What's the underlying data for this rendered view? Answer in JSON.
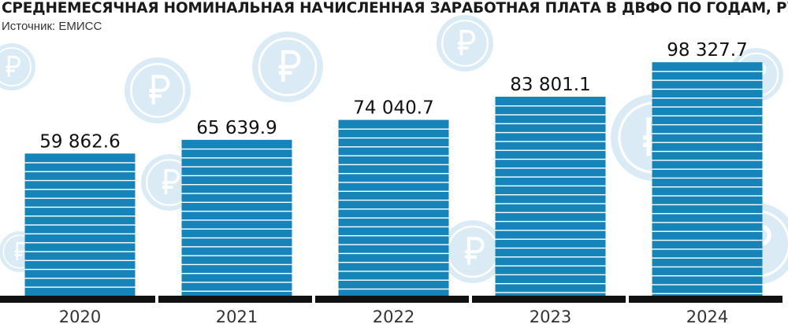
{
  "title": "СРЕДНЕМЕСЯЧНАЯ НОМИНАЛЬНАЯ НАЧИСЛЕННАЯ ЗАРАБОТНАЯ ПЛАТА В ДВФО ПО ГОДАМ, РУБ.",
  "source": "Источник: ЕМИСС",
  "colors": {
    "bar": "#1784b9",
    "bar_stripe": "#ffffff",
    "baseline": "#111111",
    "text": "#111111",
    "coin": "#cfe5f4"
  },
  "background_icon": "ruble-coin-icon",
  "chart_data": {
    "type": "bar",
    "title": "СРЕДНЕМЕСЯЧНАЯ НОМИНАЛЬНАЯ НАЧИСЛЕННАЯ ЗАРАБОТНАЯ ПЛАТА В ДВФО ПО ГОДАМ, РУБ.",
    "categories": [
      "2020",
      "2021",
      "2022",
      "2023",
      "2024"
    ],
    "values": [
      59862.6,
      65639.9,
      74040.7,
      83801.1,
      98327.7
    ],
    "value_labels": [
      "59 862.6",
      "65 639.9",
      "74 040.7",
      "83 801.1",
      "98 327.7"
    ],
    "xlabel": "",
    "ylabel": "",
    "ylim": [
      0,
      104000
    ],
    "grid": false,
    "legend": "none"
  }
}
